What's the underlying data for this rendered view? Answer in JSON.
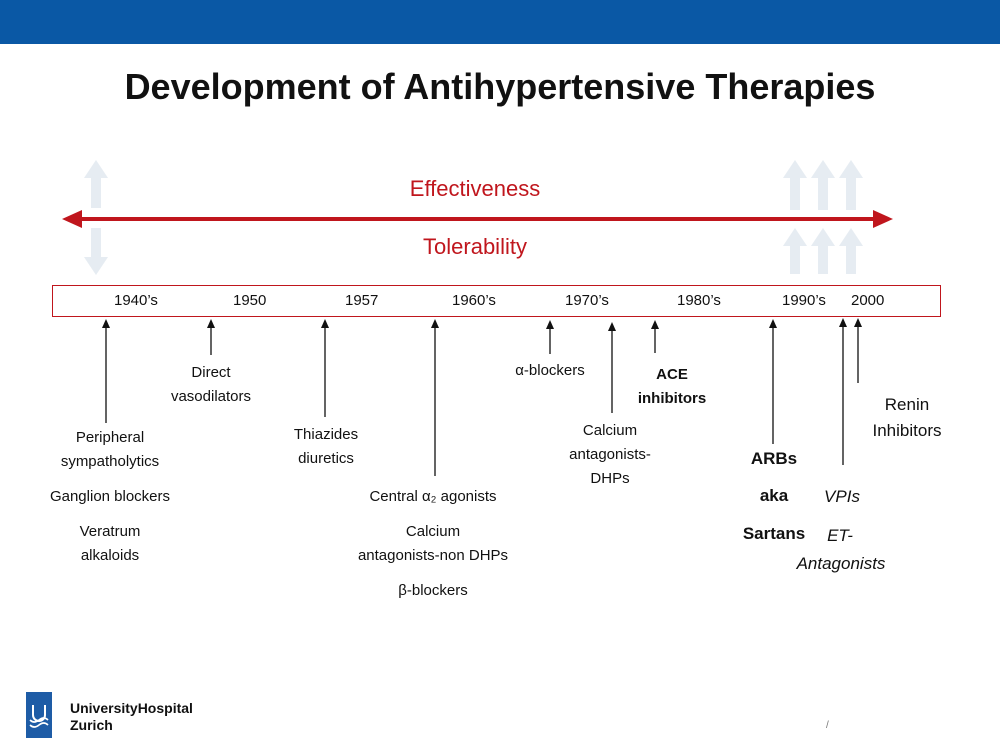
{
  "title": "Development of Antihypertensive Therapies",
  "effectiveness_label": "Effectiveness",
  "tolerability_label": "Tolerability",
  "years": [
    "1940’s",
    "1950",
    "1957",
    "1960’s",
    "1970’s",
    "1980’s",
    "1990’s",
    "2000"
  ],
  "labels": {
    "peripheral": "Peripheral",
    "sympatholytics": "sympatholytics",
    "ganglion": "Ganglion blockers",
    "veratrum": "Veratrum",
    "alkaloids": "alkaloids",
    "direct": "Direct",
    "vasodilators": "vasodilators",
    "thiazides": "Thiazides",
    "diuretics": "diuretics",
    "central_a2": "Central α₂ agonists",
    "calcium_nondhp_1": "Calcium",
    "calcium_nondhp_2": "antagonists-non DHPs",
    "beta_blockers": "β-blockers",
    "alpha_blockers": "α-blockers",
    "calcium_dhp_1": "Calcium",
    "calcium_dhp_2": "antagonists-",
    "calcium_dhp_3": "DHPs",
    "ace_1": "ACE",
    "ace_2": "inhibitors",
    "arbs": "ARBs",
    "aka": "aka",
    "sartans": "Sartans",
    "vpis": "VPIs",
    "et_1": "ET-",
    "et_2": "Antagonists",
    "renin_1": "Renin",
    "renin_2": "Inhibitors"
  },
  "logo": {
    "line1": "UniversityHospital",
    "line2": "Zurich"
  },
  "page_number": "/",
  "colors": {
    "brand_blue": "#0a58a5",
    "accent_red": "#c0161d",
    "faint_arrow": "#e6ecf2"
  }
}
